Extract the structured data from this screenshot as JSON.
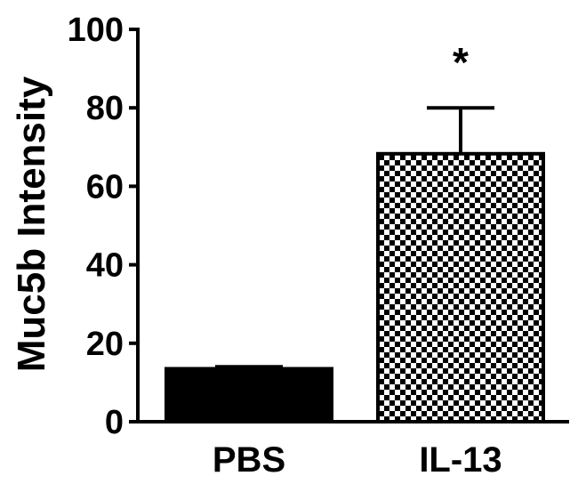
{
  "chart_data": {
    "type": "bar",
    "title": "",
    "xlabel": "",
    "ylabel": "Muc5b Intensity",
    "ylim": [
      0,
      100
    ],
    "yticks": [
      0,
      20,
      40,
      60,
      80,
      100
    ],
    "categories": [
      "PBS",
      "IL-13"
    ],
    "values": [
      13.5,
      68.3
    ],
    "errors": [
      0.5,
      11.7
    ],
    "fills": [
      "solid",
      "checker"
    ],
    "annotations": [
      "",
      "*"
    ],
    "grid": false,
    "legend": "none"
  },
  "colors": {
    "bar_solid": "#000000",
    "checker_dark": "#000000",
    "checker_light": "#ffffff"
  }
}
